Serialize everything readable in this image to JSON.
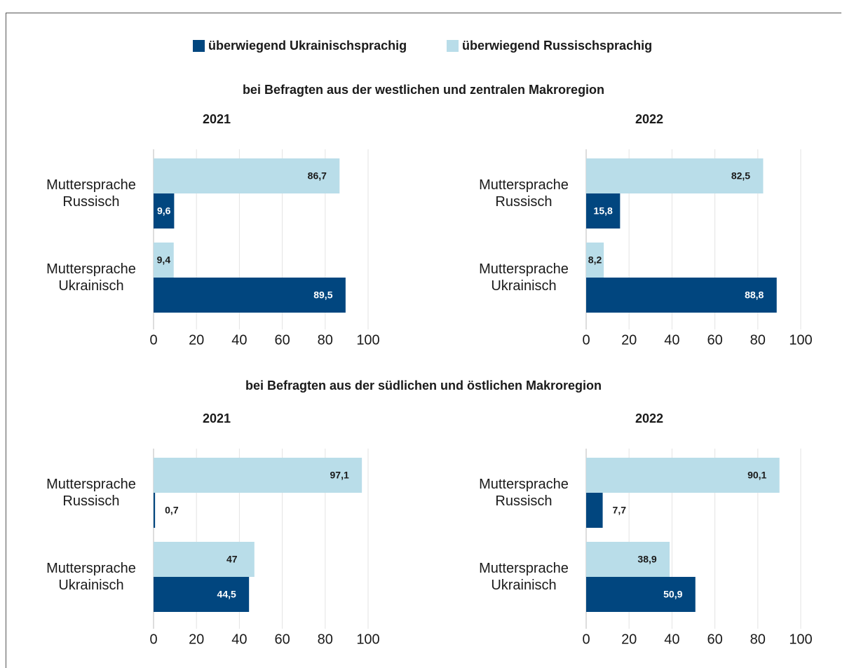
{
  "sections": [
    "bei Befragten aus der westlichen und zentralen Makroregion",
    "bei Befragten aus der südlichen und östlichen Makroregion"
  ],
  "chart_data": [
    {
      "type": "hbar",
      "title": "2021",
      "categories": [
        "Muttersprache Russisch",
        "Muttersprache Ukrainisch"
      ],
      "series": [
        {
          "name": "überwiegend Ukrainischsprachig",
          "color": "#01467f",
          "values": [
            9.6,
            89.5
          ],
          "value_labels": [
            "9,6",
            "89,5"
          ]
        },
        {
          "name": "überwiegend Russischsprachig",
          "color": "#b9dde9",
          "values": [
            86.7,
            9.4
          ],
          "value_labels": [
            "86,7",
            "9,4"
          ]
        }
      ],
      "xlim": [
        0,
        100
      ],
      "xticks": [
        0,
        20,
        40,
        60,
        80,
        100
      ],
      "grid": true
    },
    {
      "type": "hbar",
      "title": "2022",
      "categories": [
        "Muttersprache Russisch",
        "Muttersprache Ukrainisch"
      ],
      "series": [
        {
          "name": "überwiegend Ukrainischsprachig",
          "color": "#01467f",
          "values": [
            15.8,
            88.8
          ],
          "value_labels": [
            "15,8",
            "88,8"
          ]
        },
        {
          "name": "überwiegend Russischsprachig",
          "color": "#b9dde9",
          "values": [
            82.5,
            8.2
          ],
          "value_labels": [
            "82,5",
            "8,2"
          ]
        }
      ],
      "xlim": [
        0,
        100
      ],
      "xticks": [
        0,
        20,
        40,
        60,
        80,
        100
      ],
      "grid": true
    },
    {
      "type": "hbar",
      "title": "2021",
      "categories": [
        "Muttersprache Russisch",
        "Muttersprache Ukrainisch"
      ],
      "series": [
        {
          "name": "überwiegend Ukrainischsprachig",
          "color": "#01467f",
          "values": [
            0.7,
            44.5
          ],
          "value_labels": [
            "0,7",
            "44,5"
          ]
        },
        {
          "name": "überwiegend Russischsprachig",
          "color": "#b9dde9",
          "values": [
            97.1,
            47
          ],
          "value_labels": [
            "97,1",
            "47"
          ]
        }
      ],
      "xlim": [
        0,
        100
      ],
      "xticks": [
        0,
        20,
        40,
        60,
        80,
        100
      ],
      "grid": true
    },
    {
      "type": "hbar",
      "title": "2022",
      "categories": [
        "Muttersprache Russisch",
        "Muttersprache Ukrainisch"
      ],
      "series": [
        {
          "name": "überwiegend Ukrainischsprachig",
          "color": "#01467f",
          "values": [
            7.7,
            50.9
          ],
          "value_labels": [
            "7,7",
            "50,9"
          ]
        },
        {
          "name": "überwiegend Russischsprachig",
          "color": "#b9dde9",
          "values": [
            90.1,
            38.9
          ],
          "value_labels": [
            "90,1",
            "38,9"
          ]
        }
      ],
      "xlim": [
        0,
        100
      ],
      "xticks": [
        0,
        20,
        40,
        60,
        80,
        100
      ],
      "grid": true
    }
  ]
}
